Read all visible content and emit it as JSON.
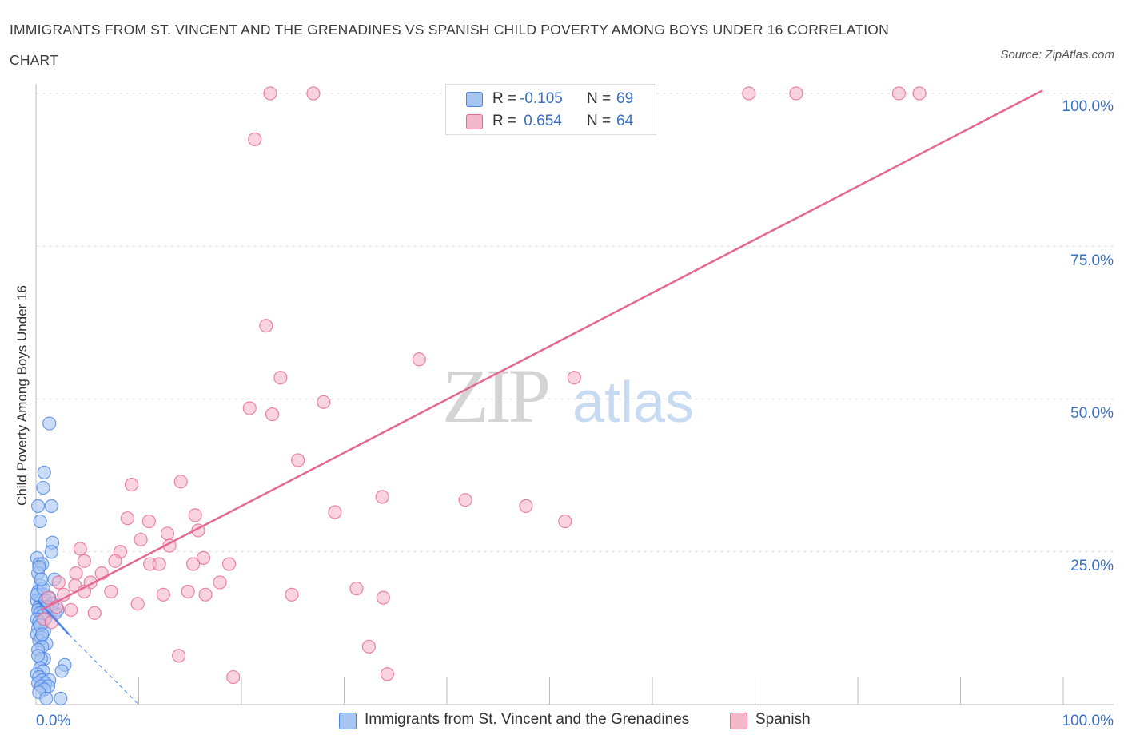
{
  "title": "IMMIGRANTS FROM ST. VINCENT AND THE GRENADINES VS SPANISH CHILD POVERTY AMONG BOYS UNDER 16 CORRELATION CHART",
  "source": "Source: ZipAtlas.com",
  "watermark": {
    "zip": "ZIP",
    "atlas": "atlas"
  },
  "legend_stats": [
    {
      "r_label": "R =",
      "r_value": "-0.105",
      "n_label": "N =",
      "n_value": "69",
      "color": "#a7c5f2"
    },
    {
      "r_label": "R =",
      "r_value": " 0.654",
      "n_label": "N =",
      "n_value": "64",
      "color": "#f5b8cb"
    }
  ],
  "legend_series": [
    {
      "label": "Immigrants from St. Vincent and the Grenadines",
      "color": "#a7c5f2"
    },
    {
      "label": "Spanish",
      "color": "#f5b8cb"
    }
  ],
  "chart_data": {
    "type": "scatter",
    "ylabel": "Child Poverty Among Boys Under 16",
    "x_tick_labels": [
      "0.0%",
      "100.0%"
    ],
    "y_tick_labels": [
      "100.0%",
      "75.0%",
      "50.0%",
      "25.0%"
    ],
    "xlim": [
      0,
      100
    ],
    "ylim": [
      0,
      100
    ],
    "y_ticks": [
      100,
      75,
      50,
      25
    ],
    "grid": "horizontal dashed",
    "series": [
      {
        "name": "Immigrants from St. Vincent and the Grenadines",
        "color": "#4a86e8",
        "fill": "#a7c5f2",
        "trend": {
          "x": [
            0.2,
            3.2
          ],
          "y": [
            17.0,
            11.5
          ],
          "dash_to": [
            10.0,
            0.0
          ]
        },
        "points": [
          [
            1.3,
            46
          ],
          [
            0.8,
            38
          ],
          [
            0.7,
            35.5
          ],
          [
            0.2,
            32.5
          ],
          [
            1.5,
            32.5
          ],
          [
            0.4,
            30
          ],
          [
            1.6,
            26.5
          ],
          [
            1.5,
            25
          ],
          [
            0.1,
            24
          ],
          [
            0.3,
            23
          ],
          [
            0.6,
            23
          ],
          [
            0.2,
            21.5
          ],
          [
            1.8,
            20.5
          ],
          [
            0.4,
            19.5
          ],
          [
            0.2,
            18.5
          ],
          [
            0.8,
            18
          ],
          [
            1.3,
            17.5
          ],
          [
            0.1,
            17
          ],
          [
            0.5,
            17
          ],
          [
            1.0,
            16.5
          ],
          [
            0.3,
            16
          ],
          [
            0.7,
            16
          ],
          [
            1.5,
            16
          ],
          [
            0.2,
            15.5
          ],
          [
            0.9,
            15.5
          ],
          [
            2.1,
            15.5
          ],
          [
            0.4,
            15
          ],
          [
            0.6,
            14.5
          ],
          [
            0.1,
            14
          ],
          [
            0.9,
            14
          ],
          [
            0.3,
            13.5
          ],
          [
            0.5,
            13
          ],
          [
            0.2,
            12.5
          ],
          [
            0.8,
            12
          ],
          [
            0.1,
            11.5
          ],
          [
            0.5,
            11
          ],
          [
            0.3,
            10.5
          ],
          [
            1.0,
            10
          ],
          [
            0.6,
            9.5
          ],
          [
            0.2,
            9
          ],
          [
            0.8,
            7.5
          ],
          [
            0.5,
            7.5
          ],
          [
            2.8,
            6.5
          ],
          [
            0.4,
            6
          ],
          [
            0.7,
            5.5
          ],
          [
            2.5,
            5.5
          ],
          [
            0.1,
            5
          ],
          [
            0.3,
            4.5
          ],
          [
            0.6,
            4
          ],
          [
            1.3,
            4
          ],
          [
            0.2,
            3.5
          ],
          [
            0.9,
            3.5
          ],
          [
            0.5,
            3
          ],
          [
            1.2,
            3
          ],
          [
            0.8,
            2.5
          ],
          [
            0.3,
            2
          ],
          [
            1.0,
            1
          ],
          [
            2.4,
            1
          ],
          [
            0.1,
            18
          ],
          [
            0.7,
            19
          ],
          [
            0.5,
            20.5
          ],
          [
            1.9,
            15
          ],
          [
            0.3,
            22.5
          ],
          [
            0.9,
            17
          ],
          [
            1.6,
            16.5
          ],
          [
            0.4,
            13
          ],
          [
            0.6,
            11.5
          ],
          [
            0.2,
            8
          ],
          [
            1.1,
            16
          ]
        ]
      },
      {
        "name": "Spanish",
        "color": "#e46892",
        "fill": "#f5b8cb",
        "trend": {
          "x": [
            0.5,
            98.0
          ],
          "y": [
            15.5,
            100.5
          ]
        },
        "points": [
          [
            22.8,
            100
          ],
          [
            27.0,
            100
          ],
          [
            69.4,
            100
          ],
          [
            74.0,
            100
          ],
          [
            84.0,
            100
          ],
          [
            86.0,
            100
          ],
          [
            21.3,
            92.5
          ],
          [
            22.4,
            62
          ],
          [
            37.3,
            56.5
          ],
          [
            23.8,
            53.5
          ],
          [
            52.4,
            53.5
          ],
          [
            20.8,
            48.5
          ],
          [
            23.0,
            47.5
          ],
          [
            28.0,
            49.5
          ],
          [
            25.5,
            40
          ],
          [
            9.3,
            36
          ],
          [
            14.1,
            36.5
          ],
          [
            33.7,
            34
          ],
          [
            41.8,
            33.5
          ],
          [
            47.7,
            32.5
          ],
          [
            29.1,
            31.5
          ],
          [
            15.5,
            31
          ],
          [
            8.9,
            30.5
          ],
          [
            11.0,
            30
          ],
          [
            51.5,
            30
          ],
          [
            12.8,
            28
          ],
          [
            10.2,
            27
          ],
          [
            15.8,
            28.5
          ],
          [
            13.0,
            26
          ],
          [
            4.3,
            25.5
          ],
          [
            8.2,
            25
          ],
          [
            16.3,
            24
          ],
          [
            7.7,
            23.5
          ],
          [
            4.7,
            23.5
          ],
          [
            11.1,
            23
          ],
          [
            12.0,
            23
          ],
          [
            15.3,
            23
          ],
          [
            18.8,
            23
          ],
          [
            3.9,
            21.5
          ],
          [
            6.4,
            21.5
          ],
          [
            5.3,
            20
          ],
          [
            2.2,
            20
          ],
          [
            17.9,
            20
          ],
          [
            3.8,
            19.5
          ],
          [
            7.3,
            18.5
          ],
          [
            4.7,
            18.5
          ],
          [
            14.8,
            18.5
          ],
          [
            16.5,
            18
          ],
          [
            12.4,
            18
          ],
          [
            24.9,
            18
          ],
          [
            31.2,
            19
          ],
          [
            33.8,
            17.5
          ],
          [
            2.7,
            18
          ],
          [
            1.2,
            17.5
          ],
          [
            2.0,
            16
          ],
          [
            3.4,
            15.5
          ],
          [
            5.7,
            15
          ],
          [
            9.9,
            16.5
          ],
          [
            0.8,
            14
          ],
          [
            1.5,
            13.5
          ],
          [
            32.4,
            9.5
          ],
          [
            13.9,
            8
          ],
          [
            19.2,
            4.5
          ],
          [
            34.2,
            5
          ]
        ]
      }
    ]
  }
}
